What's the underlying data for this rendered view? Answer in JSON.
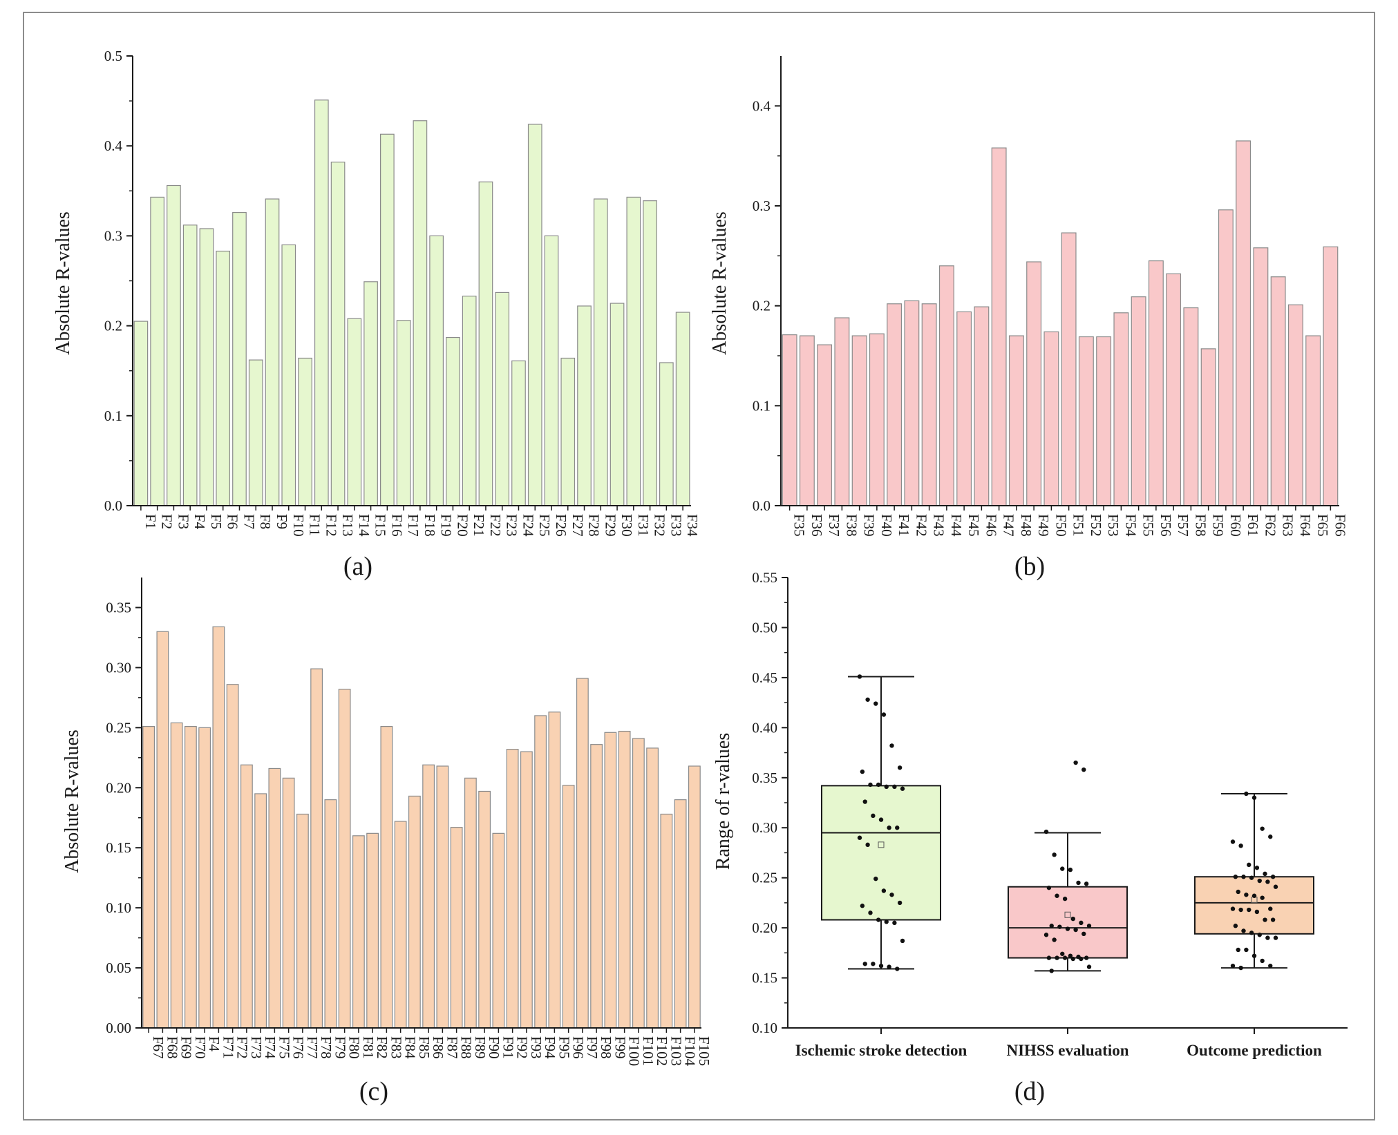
{
  "colors": {
    "green": "#e6f7cf",
    "pink": "#f9c8c9",
    "peach": "#f9d2b3",
    "edge": "#8a8a8a",
    "axis": "#1a1a1a"
  },
  "chart_data": [
    {
      "panel": "(a)",
      "type": "bar",
      "title": "",
      "xlabel": "",
      "ylabel": "Absolute R-values",
      "ylim": [
        0,
        0.5
      ],
      "yticks": [
        "0.0",
        "0.1",
        "0.2",
        "0.3",
        "0.4",
        "0.5"
      ],
      "categories": [
        "F1",
        "F2",
        "F3",
        "F4",
        "F5",
        "F6",
        "F7",
        "F8",
        "F9",
        "F10",
        "F11",
        "F12",
        "F13",
        "F14",
        "F15",
        "F16",
        "F17",
        "F18",
        "F19",
        "F20",
        "F21",
        "F22",
        "F23",
        "F24",
        "F25",
        "F26",
        "F27",
        "F28",
        "F29",
        "F30",
        "F31",
        "F32",
        "F33",
        "F34"
      ],
      "values": [
        0.205,
        0.343,
        0.356,
        0.312,
        0.308,
        0.283,
        0.326,
        0.162,
        0.341,
        0.29,
        0.164,
        0.451,
        0.382,
        0.208,
        0.249,
        0.413,
        0.206,
        0.428,
        0.3,
        0.187,
        0.233,
        0.36,
        0.237,
        0.161,
        0.424,
        0.3,
        0.164,
        0.222,
        0.341,
        0.225,
        0.343,
        0.339,
        0.159,
        0.215
      ],
      "color_key": "green"
    },
    {
      "panel": "(b)",
      "type": "bar",
      "title": "",
      "xlabel": "",
      "ylabel": "Absolute R-values",
      "ylim": [
        0,
        0.45
      ],
      "yticks": [
        "0.0",
        "0.1",
        "0.2",
        "0.3",
        "0.4"
      ],
      "categories": [
        "F35",
        "F36",
        "F37",
        "F38",
        "F39",
        "F40",
        "F41",
        "F42",
        "F43",
        "F44",
        "F45",
        "F46",
        "F47",
        "F48",
        "F49",
        "F50",
        "F51",
        "F52",
        "F53",
        "F54",
        "F55",
        "F56",
        "F57",
        "F58",
        "F59",
        "F60",
        "F61",
        "F62",
        "F63",
        "F64",
        "F65",
        "F66"
      ],
      "values": [
        0.171,
        0.17,
        0.161,
        0.188,
        0.17,
        0.172,
        0.202,
        0.205,
        0.202,
        0.24,
        0.194,
        0.199,
        0.358,
        0.17,
        0.244,
        0.174,
        0.273,
        0.169,
        0.169,
        0.193,
        0.209,
        0.245,
        0.232,
        0.198,
        0.157,
        0.296,
        0.365,
        0.258,
        0.229,
        0.201,
        0.17,
        0.259
      ],
      "color_key": "pink"
    },
    {
      "panel": "(c)",
      "type": "bar",
      "title": "",
      "xlabel": "",
      "ylabel": "Absolute R-values",
      "ylim": [
        0,
        0.375
      ],
      "yticks": [
        "0.00",
        "0.05",
        "0.10",
        "0.15",
        "0.20",
        "0.25",
        "0.30",
        "0.35"
      ],
      "categories": [
        "F67",
        "F68",
        "F69",
        "F70",
        "F4",
        "F71",
        "F72",
        "F73",
        "F74",
        "F75",
        "F76",
        "F77",
        "F78",
        "F79",
        "F80",
        "F81",
        "F82",
        "F83",
        "F84",
        "F85",
        "F86",
        "F87",
        "F88",
        "F89",
        "F90",
        "F91",
        "F92",
        "F93",
        "F94",
        "F95",
        "F96",
        "F97",
        "F98",
        "F99",
        "F100",
        "F101",
        "F102",
        "F103",
        "F104",
        "F105"
      ],
      "values": [
        0.251,
        0.33,
        0.254,
        0.251,
        0.25,
        0.334,
        0.286,
        0.219,
        0.195,
        0.216,
        0.208,
        0.178,
        0.299,
        0.19,
        0.282,
        0.16,
        0.162,
        0.251,
        0.172,
        0.193,
        0.219,
        0.218,
        0.167,
        0.208,
        0.197,
        0.162,
        0.232,
        0.23,
        0.26,
        0.263,
        0.202,
        0.291,
        0.236,
        0.246,
        0.247,
        0.241,
        0.233,
        0.178,
        0.19,
        0.218
      ],
      "color_key": "peach"
    },
    {
      "panel": "(d)",
      "type": "box",
      "title": "",
      "xlabel": "",
      "ylabel": "Range of r-values",
      "ylim": [
        0.1,
        0.55
      ],
      "yticks": [
        "0.10",
        "0.15",
        "0.20",
        "0.25",
        "0.30",
        "0.35",
        "0.40",
        "0.45",
        "0.50",
        "0.55"
      ],
      "categories": [
        "Ischemic stroke detection",
        "NIHSS evaluation",
        "Outcome prediction"
      ],
      "boxes": [
        {
          "name": "Ischemic stroke detection",
          "min": 0.159,
          "q1": 0.208,
          "median": 0.295,
          "q3": 0.342,
          "max": 0.451,
          "mean": 0.283,
          "color_key": "green",
          "points": [
            0.451,
            0.428,
            0.424,
            0.413,
            0.382,
            0.36,
            0.356,
            0.343,
            0.343,
            0.341,
            0.341,
            0.339,
            0.326,
            0.312,
            0.308,
            0.3,
            0.3,
            0.29,
            0.283,
            0.249,
            0.237,
            0.233,
            0.225,
            0.222,
            0.215,
            0.208,
            0.206,
            0.205,
            0.187,
            0.164,
            0.164,
            0.162,
            0.161,
            0.159
          ]
        },
        {
          "name": "NIHSS evaluation",
          "min": 0.157,
          "q1": 0.17,
          "median": 0.2,
          "q3": 0.241,
          "max": 0.295,
          "mean": 0.213,
          "color_key": "pink",
          "points": [
            0.365,
            0.358,
            0.296,
            0.273,
            0.259,
            0.258,
            0.245,
            0.244,
            0.24,
            0.232,
            0.229,
            0.209,
            0.205,
            0.202,
            0.202,
            0.201,
            0.199,
            0.198,
            0.194,
            0.193,
            0.188,
            0.174,
            0.172,
            0.171,
            0.17,
            0.17,
            0.17,
            0.17,
            0.169,
            0.169,
            0.161,
            0.157
          ]
        },
        {
          "name": "Outcome prediction",
          "min": 0.16,
          "q1": 0.194,
          "median": 0.225,
          "q3": 0.251,
          "max": 0.334,
          "mean": 0.228,
          "color_key": "peach",
          "points": [
            0.334,
            0.33,
            0.299,
            0.291,
            0.286,
            0.282,
            0.263,
            0.26,
            0.254,
            0.251,
            0.251,
            0.251,
            0.25,
            0.247,
            0.246,
            0.241,
            0.236,
            0.233,
            0.232,
            0.23,
            0.219,
            0.219,
            0.218,
            0.218,
            0.216,
            0.208,
            0.208,
            0.202,
            0.197,
            0.195,
            0.193,
            0.19,
            0.19,
            0.178,
            0.178,
            0.172,
            0.167,
            0.162,
            0.162,
            0.16
          ]
        }
      ]
    }
  ]
}
